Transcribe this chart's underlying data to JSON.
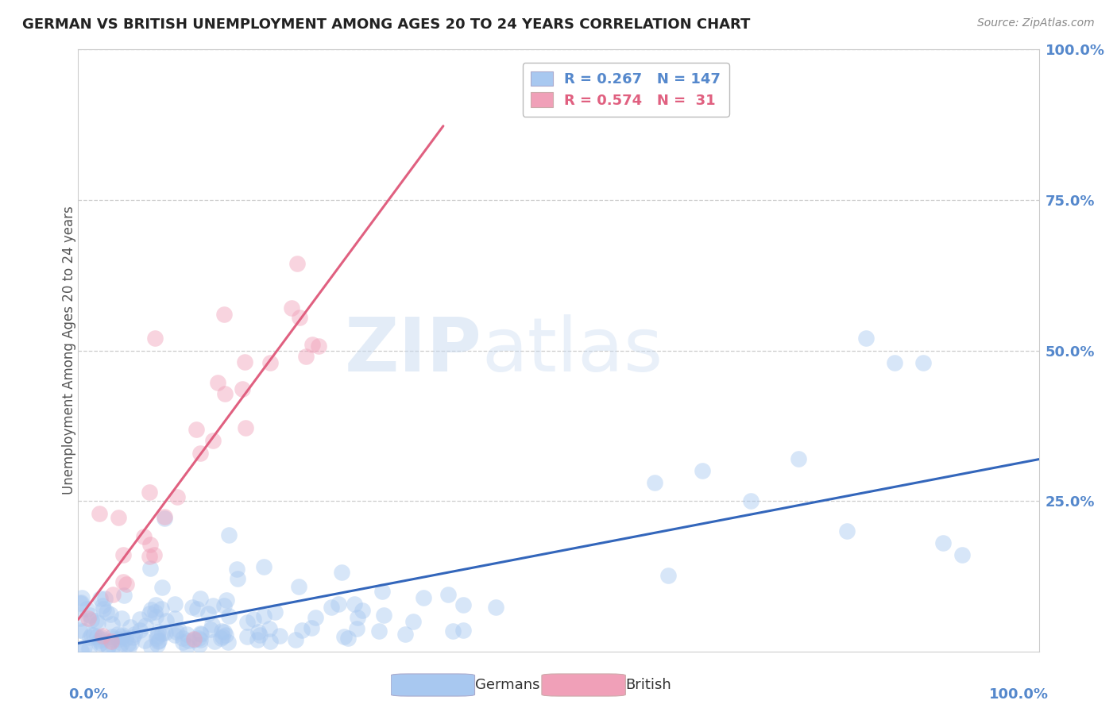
{
  "title": "GERMAN VS BRITISH UNEMPLOYMENT AMONG AGES 20 TO 24 YEARS CORRELATION CHART",
  "source": "Source: ZipAtlas.com",
  "ylabel": "Unemployment Among Ages 20 to 24 years",
  "legend_german": "Germans",
  "legend_british": "British",
  "german_R": 0.267,
  "german_N": 147,
  "british_R": 0.574,
  "british_N": 31,
  "german_color": "#a8c8f0",
  "british_color": "#f0a0b8",
  "german_line_color": "#3366bb",
  "british_line_color": "#e06080",
  "watermark_zip": "ZIP",
  "watermark_atlas": "atlas",
  "background_color": "#ffffff",
  "grid_color": "#cccccc",
  "title_color": "#222222",
  "tick_label_color": "#5588cc",
  "source_color": "#888888",
  "ylabel_color": "#555555",
  "right_ytick_labels": [
    "100.0%",
    "75.0%",
    "50.0%",
    "25.0%",
    ""
  ],
  "right_ytick_values": [
    1.0,
    0.75,
    0.5,
    0.25,
    0.0
  ],
  "xlim": [
    0,
    1.0
  ],
  "ylim": [
    0,
    1.0
  ]
}
